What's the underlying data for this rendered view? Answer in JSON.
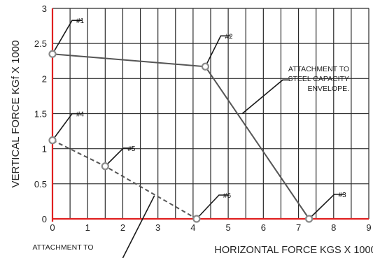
{
  "chart_data": {
    "type": "scatter",
    "xlabel": "HORIZONTAL FORCE KGS X 1000",
    "ylabel": "VERTICAL FORCE KGf X 1000",
    "xlim": [
      0,
      9
    ],
    "ylim": [
      0,
      3
    ],
    "x_ticks": [
      "0",
      "1",
      "2",
      "3",
      "4",
      "5",
      "6",
      "7",
      "8",
      "9"
    ],
    "y_ticks": [
      "0",
      "0.5",
      "1",
      "1.5",
      "2",
      "2.5",
      "3"
    ],
    "grid": true,
    "minor_divisions": 2,
    "colors": {
      "grid": "#2a2a2a",
      "axis": "#e02020",
      "point": "#8a8a8a",
      "line": "#555555"
    },
    "points": [
      {
        "id": "#1",
        "x": 0.0,
        "y": 2.35
      },
      {
        "id": "#2",
        "x": 4.35,
        "y": 2.17
      },
      {
        "id": "#3",
        "x": 7.3,
        "y": 0.0
      },
      {
        "id": "#4",
        "x": 0.0,
        "y": 1.12
      },
      {
        "id": "#5",
        "x": 1.5,
        "y": 0.75
      },
      {
        "id": "#6",
        "x": 4.1,
        "y": 0.0
      }
    ],
    "series": [
      {
        "points": [
          "#1",
          "#2",
          "#3"
        ],
        "style": "solid"
      },
      {
        "points": [
          "#4",
          "#5",
          "#6"
        ],
        "style": "dashed"
      }
    ],
    "annotations": {
      "steel": [
        "ATTACHMENT TO",
        "STEEL CAPACITY",
        "ENVELOPE."
      ],
      "concrete": "ATTACHMENT TO"
    }
  }
}
